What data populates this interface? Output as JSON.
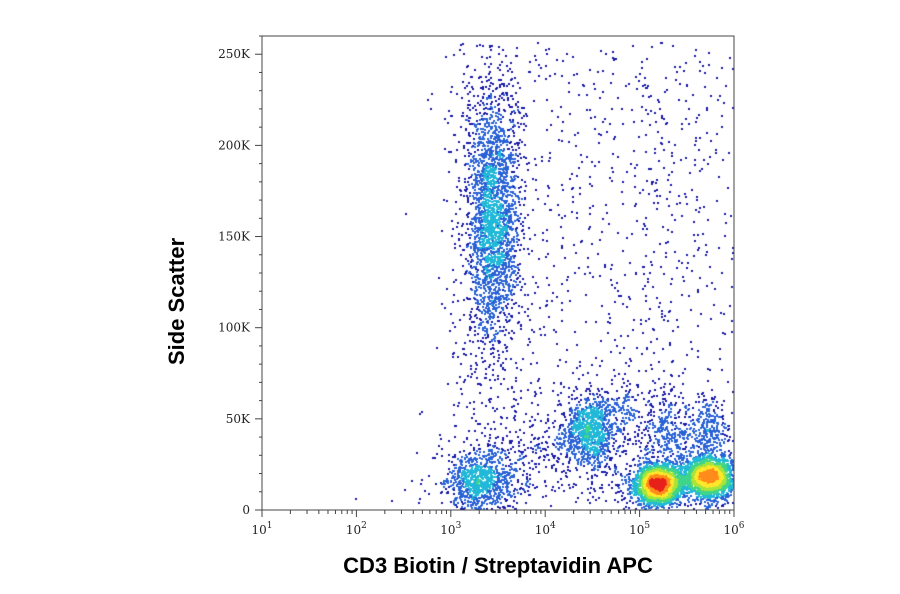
{
  "chart_data": {
    "type": "scatter",
    "subtype": "density-dot-plot",
    "title": "",
    "xlabel": "CD3 Biotin / Streptavidin APC",
    "ylabel": "Side Scatter",
    "x_scale": "log",
    "xlim": [
      10,
      1000000
    ],
    "ylim": [
      0,
      260000
    ],
    "x_ticks": [
      {
        "value": 10,
        "base": "10",
        "exp": "1"
      },
      {
        "value": 100,
        "base": "10",
        "exp": "2"
      },
      {
        "value": 1000,
        "base": "10",
        "exp": "3"
      },
      {
        "value": 10000,
        "base": "10",
        "exp": "4"
      },
      {
        "value": 100000,
        "base": "10",
        "exp": "5"
      },
      {
        "value": 1000000,
        "base": "10",
        "exp": "6"
      }
    ],
    "y_ticks": [
      {
        "value": 0,
        "label": "0"
      },
      {
        "value": 50000,
        "label": "50K"
      },
      {
        "value": 100000,
        "label": "100K"
      },
      {
        "value": 150000,
        "label": "150K"
      },
      {
        "value": 200000,
        "label": "200K"
      },
      {
        "value": 250000,
        "label": "250K"
      }
    ],
    "grid": false,
    "legend": "none",
    "colormap": [
      "#1a1aa8",
      "#2a62d6",
      "#22b8d8",
      "#3ed58a",
      "#a8e43a",
      "#ffe82a",
      "#ff8c1a",
      "#e8201a"
    ],
    "populations": [
      {
        "x_center": 2800,
        "y_center": 160000,
        "x_spread_decades": 0.13,
        "y_spread": 34000,
        "peak_density": "high"
      },
      {
        "x_center": 2000,
        "y_center": 15000,
        "x_spread_decades": 0.16,
        "y_spread": 8000,
        "peak_density": "medium"
      },
      {
        "x_center": 30000,
        "y_center": 44000,
        "x_spread_decades": 0.12,
        "y_spread": 10000,
        "peak_density": "medium"
      },
      {
        "x_center": 160000,
        "y_center": 14000,
        "x_spread_decades": 0.12,
        "y_spread": 5000,
        "peak_density": "very high"
      },
      {
        "x_center": 550000,
        "y_center": 18000,
        "x_spread_decades": 0.12,
        "y_spread": 5000,
        "peak_density": "high"
      },
      {
        "x_center": 200000,
        "y_center": 45000,
        "x_spread_decades": 0.15,
        "y_spread": 10000,
        "peak_density": "low"
      },
      {
        "x_center": 550000,
        "y_center": 43000,
        "x_spread_decades": 0.1,
        "y_spread": 9000,
        "peak_density": "low"
      },
      {
        "x_center": 200000,
        "y_center": 150000,
        "x_spread_decades": 0.25,
        "y_spread": 60000,
        "peak_density": "very low"
      }
    ]
  }
}
